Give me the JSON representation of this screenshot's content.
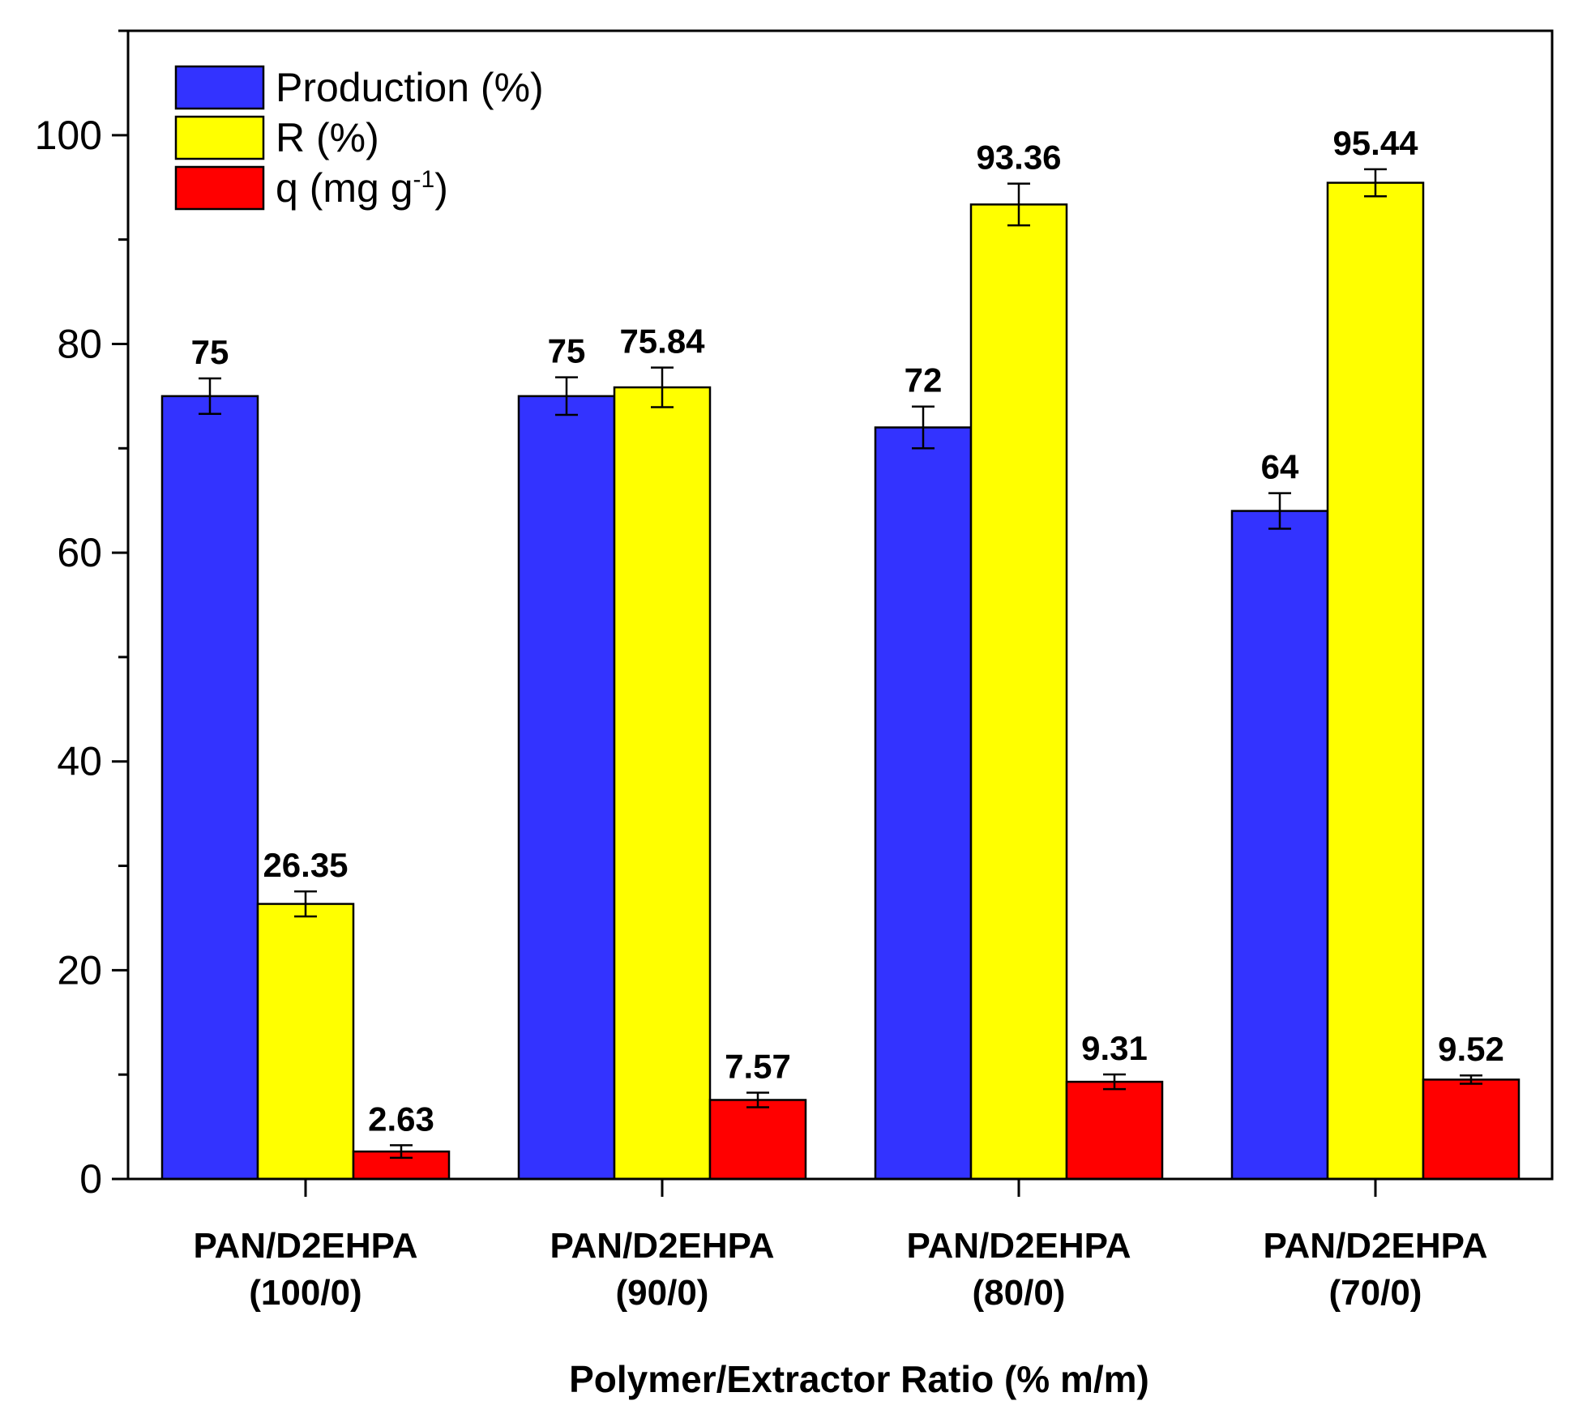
{
  "chart_data": {
    "type": "bar",
    "title": "",
    "xlabel": "Polymer/Extractor Ratio (% m/m)",
    "ylabel": "",
    "ylim": [
      0,
      110
    ],
    "yticks": [
      0,
      20,
      40,
      60,
      80,
      100
    ],
    "categories": [
      {
        "line1": "PAN/D2EHPA",
        "line2": "(100/0)"
      },
      {
        "line1": "PAN/D2EHPA",
        "line2": "(90/0)"
      },
      {
        "line1": "PAN/D2EHPA",
        "line2": "(80/0)"
      },
      {
        "line1": "PAN/D2EHPA",
        "line2": "(70/0)"
      }
    ],
    "series": [
      {
        "name": "Production (%)",
        "color": "#3333ff",
        "values": [
          75,
          75,
          72,
          64
        ],
        "labels": [
          "75",
          "75",
          "72",
          "64"
        ],
        "errors": [
          1.7,
          1.8,
          2.0,
          1.7
        ]
      },
      {
        "name": "R (%)",
        "name_main": "R (%)",
        "color": "#ffff00",
        "values": [
          26.35,
          75.84,
          93.36,
          95.44
        ],
        "labels": [
          "26.35",
          "75.84",
          "93.36",
          "95.44"
        ],
        "errors": [
          1.2,
          1.9,
          2.0,
          1.3
        ]
      },
      {
        "name": "q (mg g-1)",
        "name_main": "q (mg g",
        "name_sup": "-1",
        "name_end": ")",
        "color": "#ff0000",
        "values": [
          2.63,
          7.57,
          9.31,
          9.52
        ],
        "labels": [
          "2.63",
          "7.57",
          "9.31",
          "9.52"
        ],
        "errors": [
          0.6,
          0.7,
          0.7,
          0.4
        ]
      }
    ],
    "legend": {
      "position": "top-left"
    },
    "grid": false
  }
}
